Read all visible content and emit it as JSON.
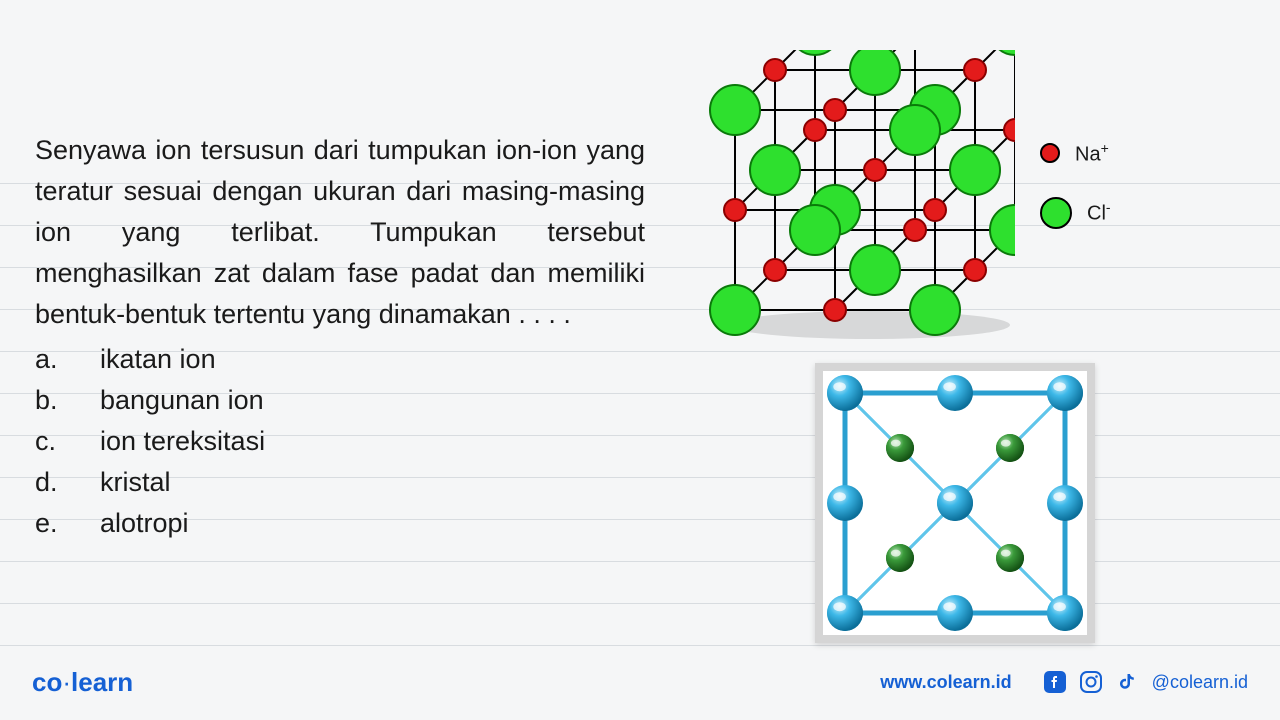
{
  "question": {
    "text": "Senyawa ion tersusun dari tumpukan ion-ion yang teratur sesuai dengan ukuran dari masing-masing ion yang terlibat. Tumpukan tersebut menghasilkan zat dalam fase padat dan memiliki bentuk-bentuk tertentu yang dinamakan . . . .",
    "options": [
      {
        "letter": "a.",
        "text": "ikatan ion"
      },
      {
        "letter": "b.",
        "text": "bangunan ion"
      },
      {
        "letter": "c.",
        "text": "ion tereksitasi"
      },
      {
        "letter": "d.",
        "text": "kristal"
      },
      {
        "letter": "e.",
        "text": "alotropi"
      }
    ]
  },
  "ruled_lines": {
    "color": "#d8dce0",
    "y_positions": [
      183,
      225,
      267,
      309,
      351,
      393,
      435,
      477,
      519,
      561,
      603,
      645
    ]
  },
  "lattice": {
    "na_color": "#e31b1b",
    "na_stroke": "#8b0000",
    "cl_color": "#2ee02e",
    "cl_stroke": "#0a7a0a",
    "edge_color": "#000000",
    "na_radius": 11,
    "cl_radius": 25,
    "legend": {
      "na": {
        "label": "Na",
        "sup": "+",
        "color": "#e31b1b",
        "size": 20
      },
      "cl": {
        "label": "Cl",
        "sup": "-",
        "color": "#2ee02e",
        "size": 32
      }
    }
  },
  "crystal": {
    "blue_color": "#3db8e8",
    "green_color": "#3a9a3a",
    "background": "#ffffff",
    "frame_color": "#d5d5d5"
  },
  "footer": {
    "logo_left": "co",
    "logo_right": "learn",
    "url": "www.colearn.id",
    "handle": "@colearn.id",
    "brand_color": "#1560d4"
  }
}
